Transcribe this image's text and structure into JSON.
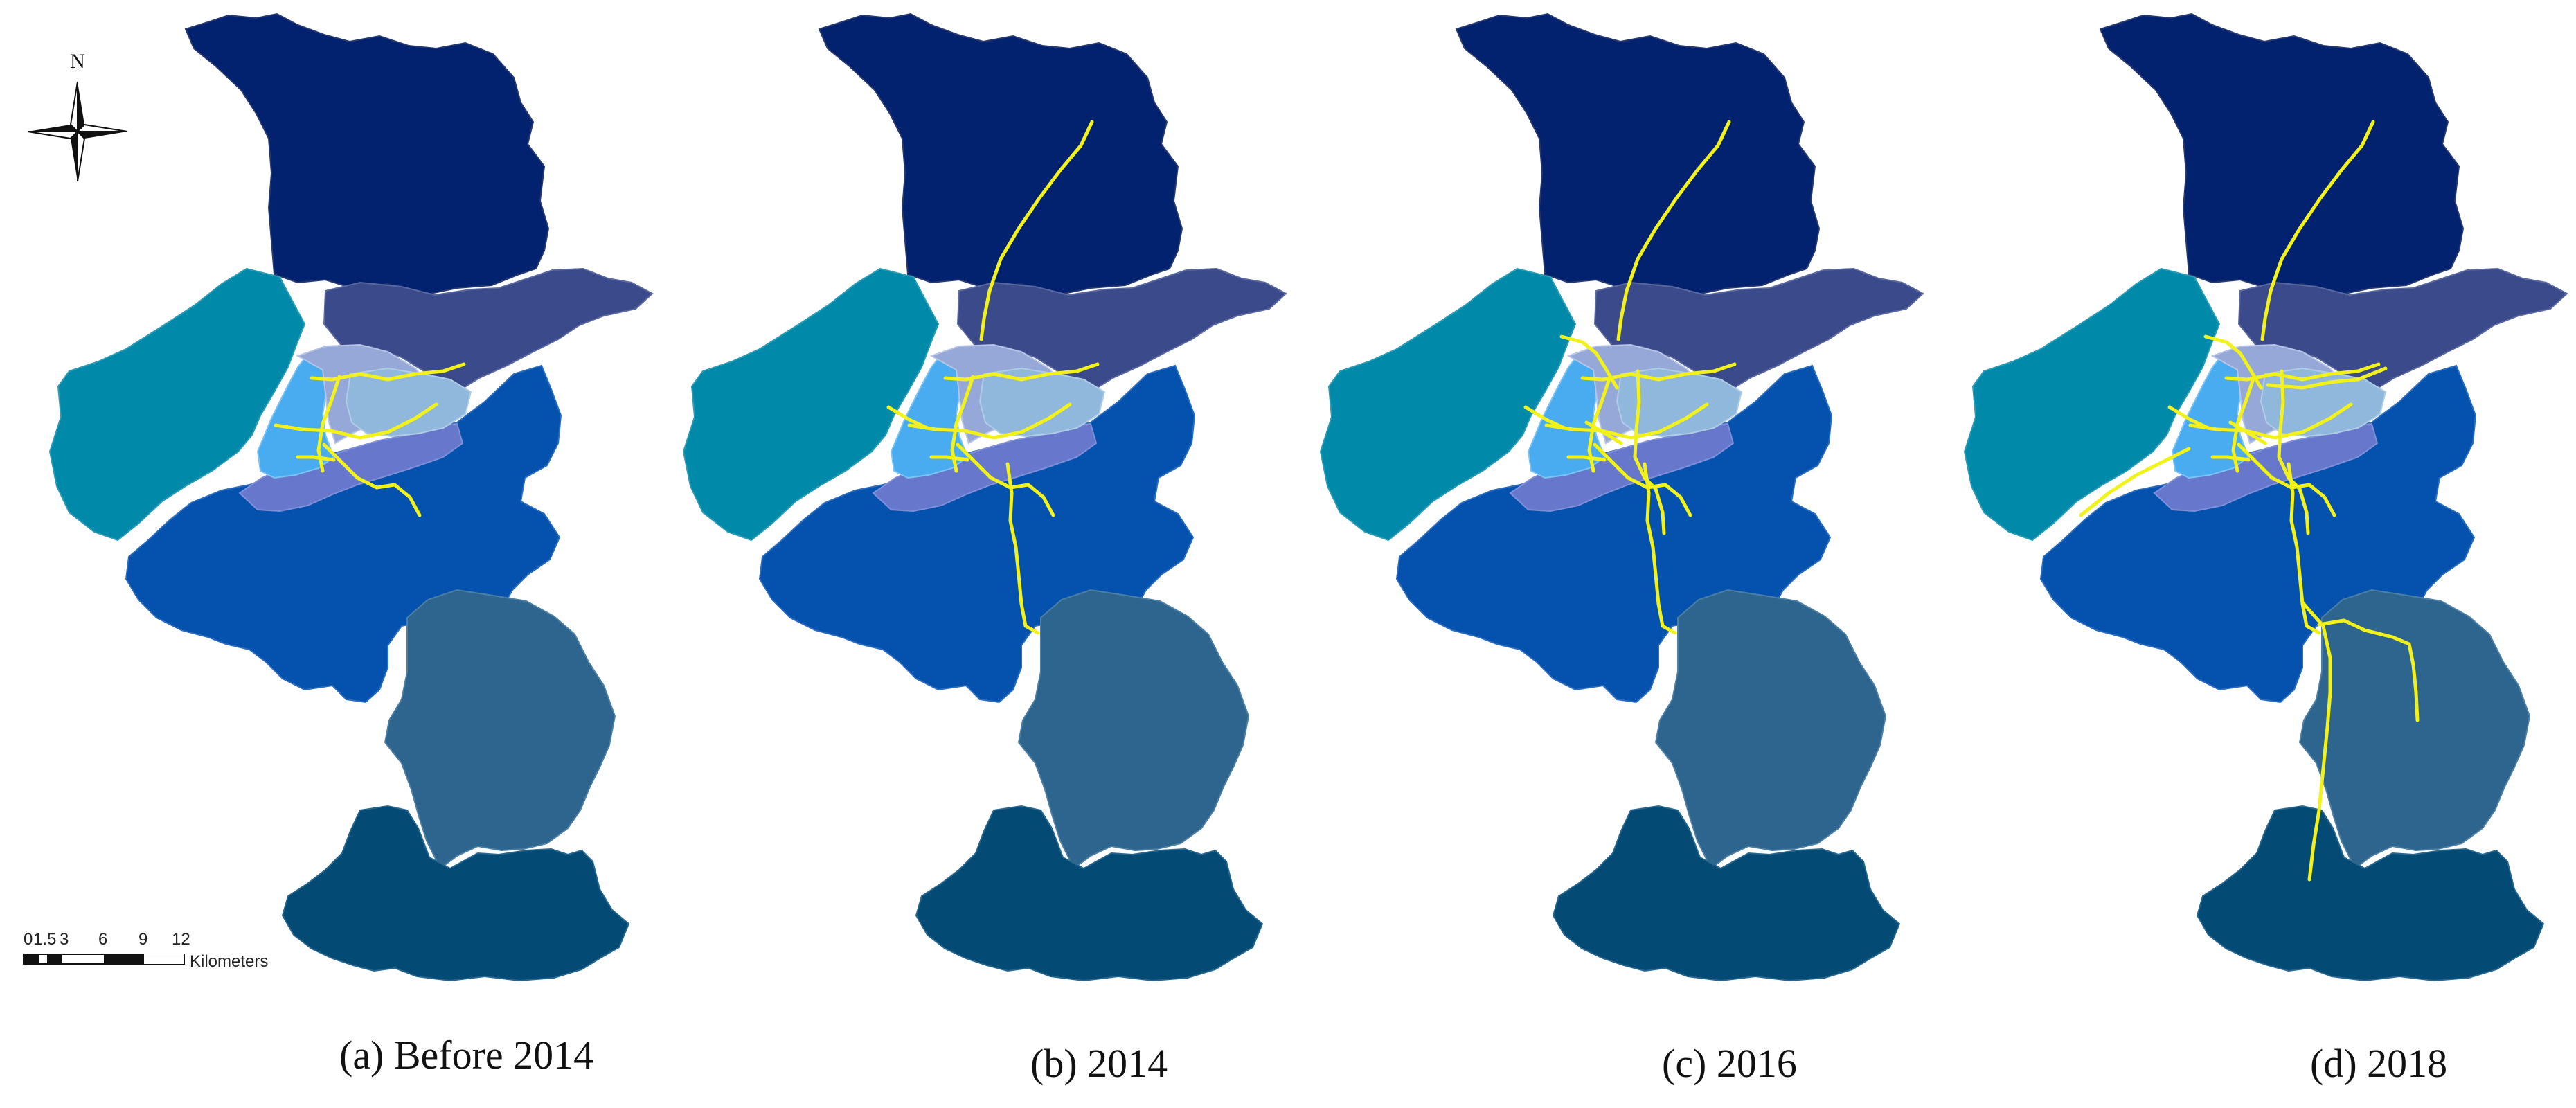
{
  "figure": {
    "panels": [
      {
        "id": "a",
        "caption": "(a) Before 2014"
      },
      {
        "id": "b",
        "caption": "(b) 2014"
      },
      {
        "id": "c",
        "caption": "(c) 2016"
      },
      {
        "id": "d",
        "caption": "(d) 2018"
      }
    ],
    "north_arrow": {
      "label": "N"
    },
    "scale_bar": {
      "ticks": [
        "0",
        "1.5",
        "3",
        "6",
        "9",
        "12"
      ],
      "unit": "Kilometers"
    },
    "colors": {
      "north_district": "#02216e",
      "northeast_district": "#3b4a8a",
      "west_district": "#0189a9",
      "central_blue": "#0452ae",
      "south_middle": "#2d658e",
      "south_bottom": "#034a74",
      "core_light": "#96a8d8",
      "core_cyan": "#4aacf0",
      "core_periwinkle": "#6677cc",
      "core_pale": "#8fb8dc",
      "metro_line": "#f2f21a"
    }
  }
}
